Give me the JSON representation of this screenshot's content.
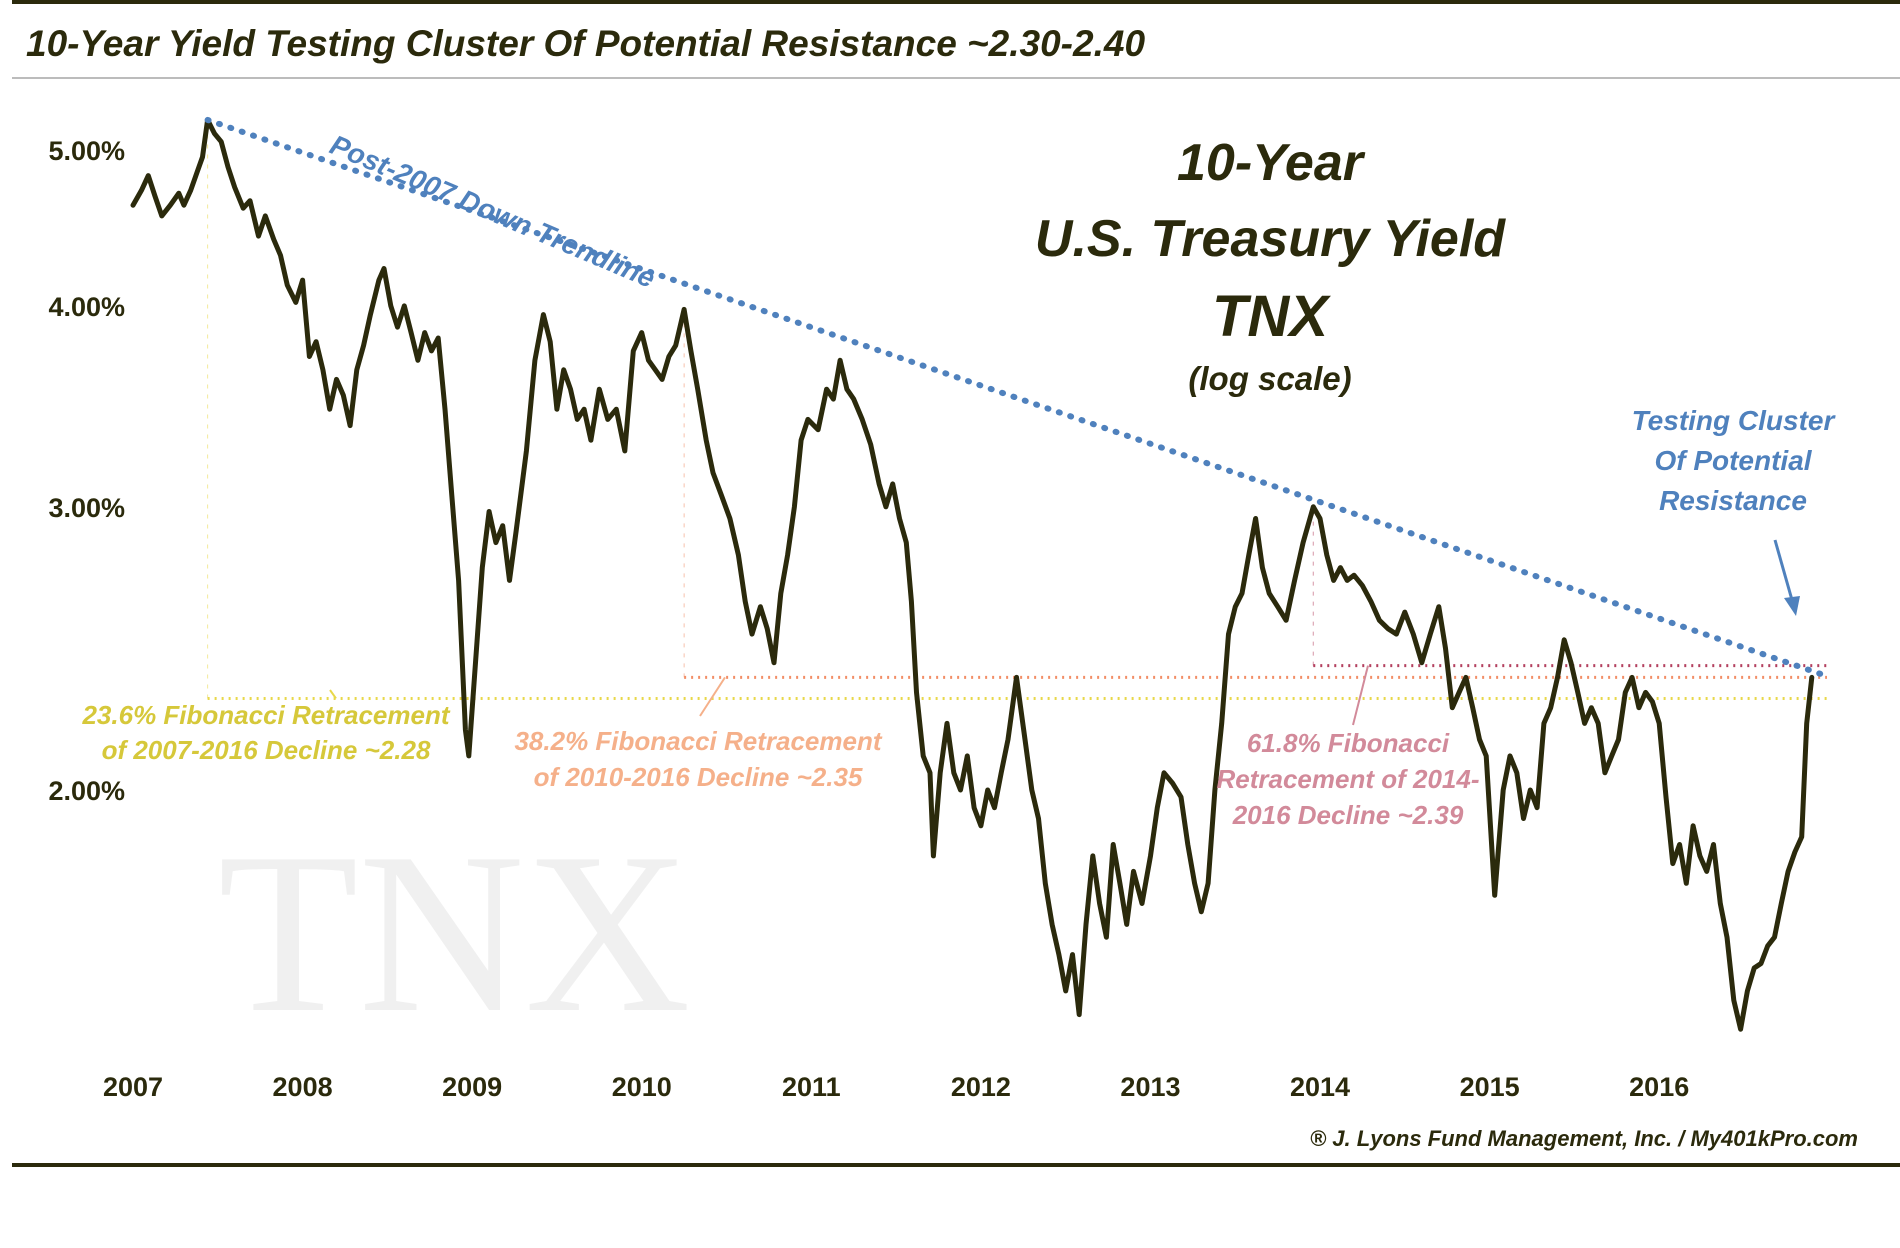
{
  "header": {
    "title": "10-Year Yield Testing Cluster Of Potential Resistance ~2.30-2.40"
  },
  "chart_data": {
    "type": "line",
    "heading_lines": [
      "10-Year",
      "U.S. Treasury Yield",
      "TNX",
      "(log scale)"
    ],
    "watermark": "TNX",
    "y_scale": "log",
    "y_ticks": [
      {
        "value": 5.0,
        "label": "5.00%"
      },
      {
        "value": 4.0,
        "label": "4.00%"
      },
      {
        "value": 3.0,
        "label": "3.00%"
      },
      {
        "value": 2.0,
        "label": "2.00%"
      }
    ],
    "x_ticks": [
      "2007",
      "2008",
      "2009",
      "2010",
      "2011",
      "2012",
      "2013",
      "2014",
      "2015",
      "2016"
    ],
    "ylim": [
      1.35,
      5.3
    ],
    "xlim": [
      2007.0,
      2016.96
    ],
    "grid": false,
    "series": [
      {
        "color": "#2b2a0c",
        "points": [
          [
            2007.0,
            4.62
          ],
          [
            2007.05,
            4.72
          ],
          [
            2007.09,
            4.82
          ],
          [
            2007.13,
            4.68
          ],
          [
            2007.17,
            4.55
          ],
          [
            2007.22,
            4.62
          ],
          [
            2007.27,
            4.7
          ],
          [
            2007.3,
            4.62
          ],
          [
            2007.34,
            4.72
          ],
          [
            2007.38,
            4.85
          ],
          [
            2007.41,
            4.95
          ],
          [
            2007.44,
            5.22
          ],
          [
            2007.48,
            5.12
          ],
          [
            2007.52,
            5.06
          ],
          [
            2007.56,
            4.88
          ],
          [
            2007.6,
            4.74
          ],
          [
            2007.65,
            4.6
          ],
          [
            2007.69,
            4.65
          ],
          [
            2007.74,
            4.42
          ],
          [
            2007.78,
            4.55
          ],
          [
            2007.83,
            4.4
          ],
          [
            2007.87,
            4.3
          ],
          [
            2007.91,
            4.12
          ],
          [
            2007.96,
            4.02
          ],
          [
            2008.0,
            4.15
          ],
          [
            2008.04,
            3.72
          ],
          [
            2008.08,
            3.8
          ],
          [
            2008.12,
            3.65
          ],
          [
            2008.16,
            3.45
          ],
          [
            2008.2,
            3.6
          ],
          [
            2008.24,
            3.52
          ],
          [
            2008.28,
            3.37
          ],
          [
            2008.32,
            3.65
          ],
          [
            2008.36,
            3.78
          ],
          [
            2008.4,
            3.95
          ],
          [
            2008.45,
            4.15
          ],
          [
            2008.48,
            4.22
          ],
          [
            2008.52,
            4.0
          ],
          [
            2008.56,
            3.88
          ],
          [
            2008.6,
            4.0
          ],
          [
            2008.64,
            3.85
          ],
          [
            2008.68,
            3.7
          ],
          [
            2008.72,
            3.85
          ],
          [
            2008.76,
            3.75
          ],
          [
            2008.8,
            3.82
          ],
          [
            2008.84,
            3.45
          ],
          [
            2008.88,
            3.05
          ],
          [
            2008.92,
            2.7
          ],
          [
            2008.96,
            2.18
          ],
          [
            2008.98,
            2.1
          ],
          [
            2009.02,
            2.4
          ],
          [
            2009.06,
            2.75
          ],
          [
            2009.1,
            2.98
          ],
          [
            2009.14,
            2.85
          ],
          [
            2009.18,
            2.92
          ],
          [
            2009.22,
            2.7
          ],
          [
            2009.26,
            2.9
          ],
          [
            2009.32,
            3.25
          ],
          [
            2009.37,
            3.7
          ],
          [
            2009.42,
            3.95
          ],
          [
            2009.46,
            3.8
          ],
          [
            2009.5,
            3.45
          ],
          [
            2009.54,
            3.65
          ],
          [
            2009.58,
            3.55
          ],
          [
            2009.62,
            3.4
          ],
          [
            2009.66,
            3.45
          ],
          [
            2009.7,
            3.3
          ],
          [
            2009.75,
            3.55
          ],
          [
            2009.8,
            3.4
          ],
          [
            2009.85,
            3.45
          ],
          [
            2009.9,
            3.25
          ],
          [
            2009.95,
            3.75
          ],
          [
            2010.0,
            3.85
          ],
          [
            2010.04,
            3.7
          ],
          [
            2010.08,
            3.65
          ],
          [
            2010.12,
            3.6
          ],
          [
            2010.16,
            3.72
          ],
          [
            2010.2,
            3.78
          ],
          [
            2010.25,
            3.98
          ],
          [
            2010.29,
            3.75
          ],
          [
            2010.33,
            3.55
          ],
          [
            2010.38,
            3.3
          ],
          [
            2010.42,
            3.15
          ],
          [
            2010.47,
            3.05
          ],
          [
            2010.52,
            2.95
          ],
          [
            2010.57,
            2.8
          ],
          [
            2010.61,
            2.62
          ],
          [
            2010.65,
            2.5
          ],
          [
            2010.7,
            2.6
          ],
          [
            2010.74,
            2.52
          ],
          [
            2010.78,
            2.4
          ],
          [
            2010.82,
            2.65
          ],
          [
            2010.86,
            2.8
          ],
          [
            2010.9,
            3.0
          ],
          [
            2010.94,
            3.3
          ],
          [
            2010.98,
            3.4
          ],
          [
            2011.04,
            3.35
          ],
          [
            2011.09,
            3.55
          ],
          [
            2011.13,
            3.5
          ],
          [
            2011.17,
            3.7
          ],
          [
            2011.21,
            3.55
          ],
          [
            2011.25,
            3.5
          ],
          [
            2011.3,
            3.4
          ],
          [
            2011.35,
            3.28
          ],
          [
            2011.4,
            3.1
          ],
          [
            2011.44,
            3.0
          ],
          [
            2011.48,
            3.1
          ],
          [
            2011.52,
            2.95
          ],
          [
            2011.56,
            2.85
          ],
          [
            2011.59,
            2.62
          ],
          [
            2011.62,
            2.3
          ],
          [
            2011.66,
            2.1
          ],
          [
            2011.7,
            2.05
          ],
          [
            2011.72,
            1.82
          ],
          [
            2011.76,
            2.05
          ],
          [
            2011.8,
            2.2
          ],
          [
            2011.84,
            2.05
          ],
          [
            2011.88,
            2.0
          ],
          [
            2011.92,
            2.1
          ],
          [
            2011.96,
            1.95
          ],
          [
            2012.0,
            1.9
          ],
          [
            2012.04,
            2.0
          ],
          [
            2012.08,
            1.95
          ],
          [
            2012.12,
            2.05
          ],
          [
            2012.16,
            2.15
          ],
          [
            2012.21,
            2.35
          ],
          [
            2012.26,
            2.15
          ],
          [
            2012.3,
            2.0
          ],
          [
            2012.34,
            1.92
          ],
          [
            2012.38,
            1.75
          ],
          [
            2012.42,
            1.65
          ],
          [
            2012.46,
            1.58
          ],
          [
            2012.5,
            1.5
          ],
          [
            2012.54,
            1.58
          ],
          [
            2012.58,
            1.45
          ],
          [
            2012.62,
            1.65
          ],
          [
            2012.66,
            1.82
          ],
          [
            2012.7,
            1.7
          ],
          [
            2012.74,
            1.62
          ],
          [
            2012.78,
            1.85
          ],
          [
            2012.82,
            1.75
          ],
          [
            2012.86,
            1.65
          ],
          [
            2012.9,
            1.78
          ],
          [
            2012.95,
            1.7
          ],
          [
            2013.0,
            1.82
          ],
          [
            2013.04,
            1.95
          ],
          [
            2013.08,
            2.05
          ],
          [
            2013.13,
            2.02
          ],
          [
            2013.18,
            1.98
          ],
          [
            2013.22,
            1.85
          ],
          [
            2013.26,
            1.75
          ],
          [
            2013.3,
            1.68
          ],
          [
            2013.34,
            1.75
          ],
          [
            2013.38,
            2.0
          ],
          [
            2013.42,
            2.2
          ],
          [
            2013.46,
            2.5
          ],
          [
            2013.5,
            2.6
          ],
          [
            2013.54,
            2.65
          ],
          [
            2013.58,
            2.8
          ],
          [
            2013.62,
            2.95
          ],
          [
            2013.66,
            2.75
          ],
          [
            2013.7,
            2.65
          ],
          [
            2013.75,
            2.6
          ],
          [
            2013.8,
            2.55
          ],
          [
            2013.85,
            2.7
          ],
          [
            2013.9,
            2.85
          ],
          [
            2013.96,
            3.0
          ],
          [
            2014.0,
            2.95
          ],
          [
            2014.04,
            2.8
          ],
          [
            2014.08,
            2.7
          ],
          [
            2014.12,
            2.75
          ],
          [
            2014.16,
            2.7
          ],
          [
            2014.2,
            2.72
          ],
          [
            2014.25,
            2.68
          ],
          [
            2014.3,
            2.62
          ],
          [
            2014.35,
            2.55
          ],
          [
            2014.4,
            2.52
          ],
          [
            2014.45,
            2.5
          ],
          [
            2014.5,
            2.58
          ],
          [
            2014.55,
            2.5
          ],
          [
            2014.6,
            2.4
          ],
          [
            2014.65,
            2.5
          ],
          [
            2014.7,
            2.6
          ],
          [
            2014.74,
            2.45
          ],
          [
            2014.78,
            2.25
          ],
          [
            2014.82,
            2.3
          ],
          [
            2014.86,
            2.35
          ],
          [
            2014.9,
            2.25
          ],
          [
            2014.94,
            2.15
          ],
          [
            2014.98,
            2.1
          ],
          [
            2015.03,
            1.72
          ],
          [
            2015.08,
            2.0
          ],
          [
            2015.12,
            2.1
          ],
          [
            2015.16,
            2.05
          ],
          [
            2015.2,
            1.92
          ],
          [
            2015.24,
            2.0
          ],
          [
            2015.28,
            1.95
          ],
          [
            2015.32,
            2.2
          ],
          [
            2015.36,
            2.25
          ],
          [
            2015.4,
            2.35
          ],
          [
            2015.44,
            2.48
          ],
          [
            2015.48,
            2.4
          ],
          [
            2015.52,
            2.3
          ],
          [
            2015.56,
            2.2
          ],
          [
            2015.6,
            2.25
          ],
          [
            2015.64,
            2.2
          ],
          [
            2015.68,
            2.05
          ],
          [
            2015.72,
            2.1
          ],
          [
            2015.76,
            2.15
          ],
          [
            2015.8,
            2.3
          ],
          [
            2015.84,
            2.35
          ],
          [
            2015.88,
            2.25
          ],
          [
            2015.92,
            2.3
          ],
          [
            2015.96,
            2.27
          ],
          [
            2016.0,
            2.2
          ],
          [
            2016.04,
            1.98
          ],
          [
            2016.08,
            1.8
          ],
          [
            2016.12,
            1.85
          ],
          [
            2016.16,
            1.75
          ],
          [
            2016.2,
            1.9
          ],
          [
            2016.24,
            1.82
          ],
          [
            2016.28,
            1.78
          ],
          [
            2016.32,
            1.85
          ],
          [
            2016.36,
            1.7
          ],
          [
            2016.4,
            1.62
          ],
          [
            2016.44,
            1.48
          ],
          [
            2016.48,
            1.42
          ],
          [
            2016.52,
            1.5
          ],
          [
            2016.56,
            1.55
          ],
          [
            2016.6,
            1.56
          ],
          [
            2016.64,
            1.6
          ],
          [
            2016.68,
            1.62
          ],
          [
            2016.72,
            1.7
          ],
          [
            2016.76,
            1.78
          ],
          [
            2016.8,
            1.83
          ],
          [
            2016.84,
            1.87
          ],
          [
            2016.87,
            2.2
          ],
          [
            2016.9,
            2.35
          ]
        ]
      }
    ],
    "trendline": {
      "label": "Post-2007 Down Trendline",
      "color": "#4f81bd",
      "from": [
        2007.44,
        5.22
      ],
      "to": [
        2016.96,
        2.36
      ]
    },
    "fib_levels": [
      {
        "value": 2.28,
        "from_x": 2007.44,
        "color": "#e8d84a",
        "label_lines": [
          "23.6% Fibonacci Retracement",
          "of 2007-2016 Decline ~2.28"
        ]
      },
      {
        "value": 2.35,
        "from_x": 2010.25,
        "color": "#f28e66",
        "label_lines": [
          "38.2% Fibonacci Retracement",
          "of 2010-2016 Decline ~2.35"
        ]
      },
      {
        "value": 2.39,
        "from_x": 2013.96,
        "color": "#b3405f",
        "label_lines": [
          "61.8% Fibonacci",
          "Retracement of 2014-",
          "2016 Decline ~2.39"
        ]
      }
    ],
    "annotation": {
      "lines": [
        "Testing Cluster",
        "Of Potential",
        "Resistance"
      ],
      "color": "#4f81bd"
    },
    "credit": "® J. Lyons Fund Management, Inc. / My401kPro.com"
  }
}
